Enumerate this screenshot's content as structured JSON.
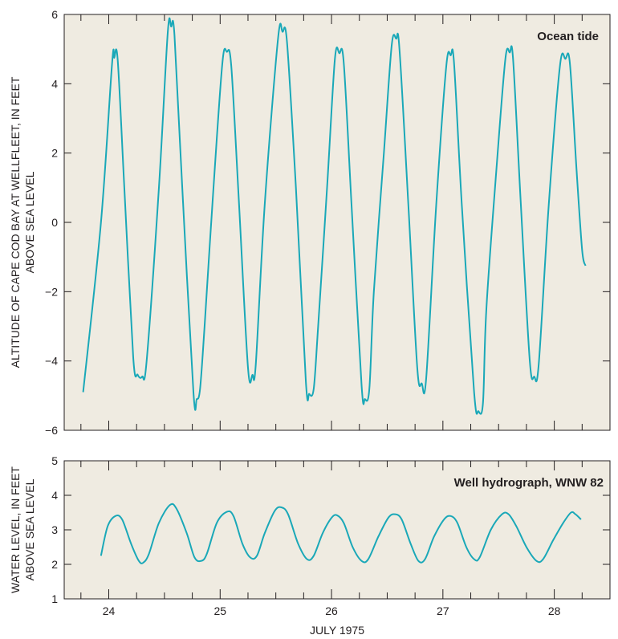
{
  "colors": {
    "background": "#efebe1",
    "line": "#1aa8b8",
    "text": "#231f20"
  },
  "xlabel": "JULY 1975",
  "chart_data": [
    {
      "type": "line",
      "title": "Ocean tide",
      "ylabel_line1": "ALTITUDE OF CAPE COD BAY AT WELLFLEET, IN FEET",
      "ylabel_line2": "ABOVE SEA LEVEL",
      "ylim": [
        -6,
        6
      ],
      "yticks": [
        -6,
        -4,
        -2,
        0,
        2,
        4,
        6
      ],
      "ytick_labels": [
        "−6",
        "−4",
        "−2",
        "0",
        "2",
        "4",
        "6"
      ],
      "xlim": [
        23.6,
        28.5
      ],
      "xticks": [
        23.75,
        24,
        24.25,
        24.5,
        24.75,
        25,
        25.25,
        25.5,
        25.75,
        26,
        26.25,
        26.5,
        26.75,
        27,
        27.25,
        27.5,
        27.75,
        28,
        28.25
      ],
      "grid": false,
      "series": [
        {
          "points": [
            [
              23.77,
              -4.9
            ],
            [
              23.93,
              0.0
            ],
            [
              24.03,
              4.6
            ],
            [
              24.05,
              4.75
            ],
            [
              24.08,
              4.7
            ],
            [
              24.14,
              1.0
            ],
            [
              24.22,
              -3.9
            ],
            [
              24.26,
              -4.4
            ],
            [
              24.3,
              -4.45
            ],
            [
              24.34,
              -4.0
            ],
            [
              24.45,
              1.0
            ],
            [
              24.53,
              5.5
            ],
            [
              24.56,
              5.65
            ],
            [
              24.59,
              5.4
            ],
            [
              24.66,
              1.0
            ],
            [
              24.76,
              -4.9
            ],
            [
              24.79,
              -5.1
            ],
            [
              24.82,
              -4.8
            ],
            [
              24.86,
              -3.0
            ],
            [
              24.94,
              1.0
            ],
            [
              25.02,
              4.6
            ],
            [
              25.06,
              4.92
            ],
            [
              25.1,
              4.5
            ],
            [
              25.17,
              0.5
            ],
            [
              25.25,
              -4.2
            ],
            [
              25.29,
              -4.4
            ],
            [
              25.32,
              -4.1
            ],
            [
              25.4,
              0.5
            ],
            [
              25.52,
              5.3
            ],
            [
              25.56,
              5.5
            ],
            [
              25.6,
              5.2
            ],
            [
              25.68,
              1.0
            ],
            [
              25.77,
              -4.6
            ],
            [
              25.8,
              -4.95
            ],
            [
              25.84,
              -4.8
            ],
            [
              25.88,
              -3.0
            ],
            [
              25.96,
              1.0
            ],
            [
              26.03,
              4.7
            ],
            [
              26.07,
              4.88
            ],
            [
              26.11,
              4.6
            ],
            [
              26.18,
              0.5
            ],
            [
              26.27,
              -4.7
            ],
            [
              26.3,
              -5.1
            ],
            [
              26.34,
              -4.8
            ],
            [
              26.38,
              -2.0
            ],
            [
              26.47,
              2.0
            ],
            [
              26.54,
              5.1
            ],
            [
              26.58,
              5.3
            ],
            [
              26.61,
              5.0
            ],
            [
              26.69,
              0.5
            ],
            [
              26.77,
              -4.2
            ],
            [
              26.81,
              -4.65
            ],
            [
              26.85,
              -4.5
            ],
            [
              26.94,
              0.5
            ],
            [
              27.03,
              4.5
            ],
            [
              27.07,
              4.82
            ],
            [
              27.1,
              4.6
            ],
            [
              27.17,
              0.5
            ],
            [
              27.28,
              -4.9
            ],
            [
              27.32,
              -5.45
            ],
            [
              27.36,
              -5.2
            ],
            [
              27.39,
              -2.5
            ],
            [
              27.48,
              1.5
            ],
            [
              27.56,
              4.7
            ],
            [
              27.6,
              4.9
            ],
            [
              27.63,
              4.7
            ],
            [
              27.7,
              0.5
            ],
            [
              27.78,
              -4.0
            ],
            [
              27.82,
              -4.45
            ],
            [
              27.86,
              -4.1
            ],
            [
              27.95,
              0.5
            ],
            [
              28.05,
              4.5
            ],
            [
              28.1,
              4.72
            ],
            [
              28.14,
              4.6
            ],
            [
              28.2,
              1.5
            ],
            [
              28.25,
              -0.8
            ],
            [
              28.28,
              -1.25
            ]
          ]
        }
      ]
    },
    {
      "type": "line",
      "title": "Well hydrograph, WNW 82",
      "ylabel_line1": "WATER LEVEL, IN FEET",
      "ylabel_line2": "ABOVE SEA LEVEL",
      "ylim": [
        1,
        5
      ],
      "yticks": [
        1,
        2,
        3,
        4,
        5
      ],
      "ytick_labels": [
        "1",
        "2",
        "3",
        "4",
        "5"
      ],
      "xlim": [
        23.6,
        28.5
      ],
      "xticks": [
        23.75,
        24,
        24.25,
        24.5,
        24.75,
        25,
        25.25,
        25.5,
        25.75,
        26,
        26.25,
        26.5,
        26.75,
        27,
        27.25,
        27.5,
        27.75,
        28,
        28.25
      ],
      "xtick_labels": [
        {
          "x": 24,
          "label": "24"
        },
        {
          "x": 25,
          "label": "25"
        },
        {
          "x": 26,
          "label": "26"
        },
        {
          "x": 27,
          "label": "27"
        },
        {
          "x": 28,
          "label": "28"
        }
      ],
      "grid": false,
      "series": [
        {
          "points": [
            [
              23.93,
              2.25
            ],
            [
              23.99,
              3.1
            ],
            [
              24.06,
              3.4
            ],
            [
              24.12,
              3.3
            ],
            [
              24.2,
              2.6
            ],
            [
              24.27,
              2.1
            ],
            [
              24.31,
              2.05
            ],
            [
              24.36,
              2.3
            ],
            [
              24.45,
              3.2
            ],
            [
              24.55,
              3.72
            ],
            [
              24.61,
              3.6
            ],
            [
              24.7,
              2.9
            ],
            [
              24.77,
              2.2
            ],
            [
              24.83,
              2.1
            ],
            [
              24.88,
              2.3
            ],
            [
              24.97,
              3.2
            ],
            [
              25.06,
              3.52
            ],
            [
              25.12,
              3.4
            ],
            [
              25.2,
              2.6
            ],
            [
              25.27,
              2.2
            ],
            [
              25.33,
              2.25
            ],
            [
              25.4,
              2.9
            ],
            [
              25.49,
              3.55
            ],
            [
              25.55,
              3.65
            ],
            [
              25.61,
              3.45
            ],
            [
              25.7,
              2.6
            ],
            [
              25.78,
              2.15
            ],
            [
              25.84,
              2.25
            ],
            [
              25.92,
              2.9
            ],
            [
              26.0,
              3.35
            ],
            [
              26.05,
              3.42
            ],
            [
              26.11,
              3.2
            ],
            [
              26.19,
              2.5
            ],
            [
              26.27,
              2.1
            ],
            [
              26.33,
              2.15
            ],
            [
              26.42,
              2.8
            ],
            [
              26.51,
              3.35
            ],
            [
              26.57,
              3.45
            ],
            [
              26.63,
              3.3
            ],
            [
              26.71,
              2.6
            ],
            [
              26.78,
              2.1
            ],
            [
              26.84,
              2.15
            ],
            [
              26.92,
              2.8
            ],
            [
              27.01,
              3.3
            ],
            [
              27.07,
              3.4
            ],
            [
              27.13,
              3.2
            ],
            [
              27.21,
              2.5
            ],
            [
              27.28,
              2.15
            ],
            [
              27.33,
              2.2
            ],
            [
              27.43,
              3.0
            ],
            [
              27.53,
              3.45
            ],
            [
              27.59,
              3.45
            ],
            [
              27.66,
              3.1
            ],
            [
              27.75,
              2.5
            ],
            [
              27.84,
              2.1
            ],
            [
              27.9,
              2.15
            ],
            [
              27.99,
              2.7
            ],
            [
              28.08,
              3.2
            ],
            [
              28.15,
              3.5
            ],
            [
              28.19,
              3.45
            ],
            [
              28.24,
              3.3
            ]
          ]
        }
      ]
    }
  ]
}
